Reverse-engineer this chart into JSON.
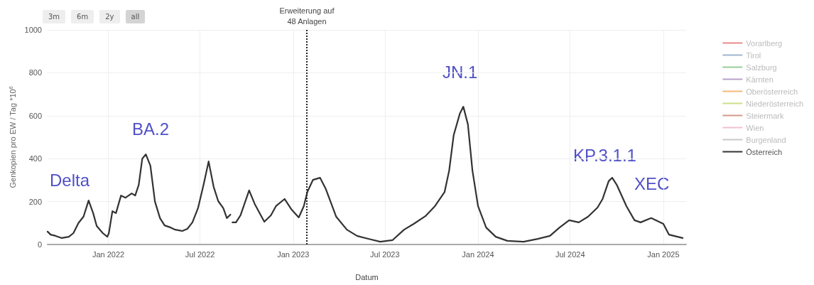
{
  "chart_data": {
    "type": "line",
    "xlabel": "Datum",
    "ylabel": "Genkopien pro EW / Tag *10$^{6}$",
    "xlim": [
      "2021-09-03",
      "2025-02-15"
    ],
    "ylim": [
      0,
      1000
    ],
    "yticks": [
      0,
      200,
      400,
      600,
      800,
      1000
    ],
    "xticks": [
      {
        "value": "2022-01-01",
        "label": "Jan 2022"
      },
      {
        "value": "2022-07-01",
        "label": "Jul 2022"
      },
      {
        "value": "2023-01-01",
        "label": "Jan 2023"
      },
      {
        "value": "2023-07-01",
        "label": "Jul 2023"
      },
      {
        "value": "2024-01-01",
        "label": "Jan 2024"
      },
      {
        "value": "2024-07-01",
        "label": "Jul 2024"
      },
      {
        "value": "2025-01-01",
        "label": "Jan 2025"
      }
    ],
    "grid": true,
    "legend": "top right",
    "marker": "none",
    "line_style": "solid",
    "annotations": [
      "3m",
      "6m",
      "2y",
      "all",
      "Delta",
      "BA.2",
      "JN.1",
      "KP.3.1.1",
      "XEC"
    ],
    "ref_lines": [
      {
        "axis": "x",
        "value": "2023-01-28",
        "label": "Erweiterung auf\n48 Anlagen",
        "line_style": "dotted",
        "color": "#222222"
      }
    ],
    "series": [
      {
        "name": "Vorarlberg",
        "color": "#e88a8a"
      },
      {
        "name": "Tirol",
        "color": "#a0b4d0"
      },
      {
        "name": "Salzburg",
        "color": "#99cc99"
      },
      {
        "name": "Kärnten",
        "color": "#b8a0cc"
      },
      {
        "name": "Oberösterreich",
        "color": "#f5b87a"
      },
      {
        "name": "Niederösterreich",
        "color": "#cce08a"
      },
      {
        "name": "Steiermark",
        "color": "#d09a8a"
      },
      {
        "name": "Wien",
        "color": "#f0c0d0"
      },
      {
        "name": "Burgenland",
        "color": "#c8c8c8"
      },
      {
        "name": "Österreich",
        "color": "#333333",
        "x": [
          "2021-09-03",
          "2021-09-09",
          "2021-09-19",
          "2021-10-01",
          "2021-10-15",
          "2021-10-24",
          "2021-11-03",
          "2021-11-13",
          "2021-11-23",
          "2021-12-02",
          "2021-12-09",
          "2021-12-21",
          "2021-12-30",
          "2022-01-02",
          "2022-01-09",
          "2022-01-16",
          "2022-01-26",
          "2022-02-04",
          "2022-02-16",
          "2022-02-23",
          "2022-03-02",
          "2022-03-09",
          "2022-03-16",
          "2022-03-25",
          "2022-04-03",
          "2022-04-13",
          "2022-04-22",
          "2022-05-04",
          "2022-05-13",
          "2022-05-27",
          "2022-06-06",
          "2022-06-16",
          "2022-06-27",
          "2022-07-08",
          "2022-07-18",
          "2022-07-28",
          "2022-08-06",
          "2022-08-16",
          "2022-08-23",
          "2022-08-30",
          "2022-09-01",
          "2022-09-03",
          "2022-09-10",
          "2022-09-19",
          "2022-10-06",
          "2022-10-17",
          "2022-11-05",
          "2022-11-18",
          "2022-11-28",
          "2022-12-15",
          "2022-12-29",
          "2023-01-12",
          "2023-01-22",
          "2023-01-29",
          "2023-02-09",
          "2023-02-23",
          "2023-03-06",
          "2023-03-27",
          "2023-04-17",
          "2023-05-07",
          "2023-06-04",
          "2023-06-22",
          "2023-07-16",
          "2023-08-08",
          "2023-08-27",
          "2023-09-19",
          "2023-10-08",
          "2023-10-27",
          "2023-11-05",
          "2023-11-14",
          "2023-11-26",
          "2023-12-03",
          "2023-12-12",
          "2023-12-21",
          "2024-01-01",
          "2024-01-17",
          "2024-02-05",
          "2024-02-28",
          "2024-03-31",
          "2024-04-28",
          "2024-05-22",
          "2024-06-10",
          "2024-06-29",
          "2024-07-18",
          "2024-08-05",
          "2024-08-24",
          "2024-09-03",
          "2024-09-15",
          "2024-09-22",
          "2024-10-01",
          "2024-10-20",
          "2024-11-05",
          "2024-11-17",
          "2024-12-08",
          "2025-01-01",
          "2025-01-12",
          "2025-02-08"
        ],
        "values": [
          60,
          46,
          40,
          30,
          36,
          53,
          100,
          130,
          205,
          146,
          86,
          53,
          36,
          53,
          155,
          146,
          228,
          218,
          238,
          228,
          278,
          400,
          420,
          367,
          200,
          123,
          89,
          79,
          69,
          63,
          73,
          103,
          169,
          278,
          387,
          268,
          202,
          169,
          123,
          139,
          null,
          103,
          103,
          136,
          252,
          189,
          106,
          136,
          179,
          212,
          162,
          126,
          179,
          245,
          301,
          311,
          261,
          129,
          69,
          40,
          23,
          13,
          20,
          69,
          96,
          132,
          179,
          245,
          344,
          510,
          609,
          642,
          560,
          344,
          179,
          79,
          36,
          17,
          13,
          26,
          40,
          79,
          113,
          103,
          129,
          172,
          212,
          295,
          311,
          278,
          179,
          113,
          103,
          123,
          96,
          46,
          30
        ]
      }
    ]
  }
}
